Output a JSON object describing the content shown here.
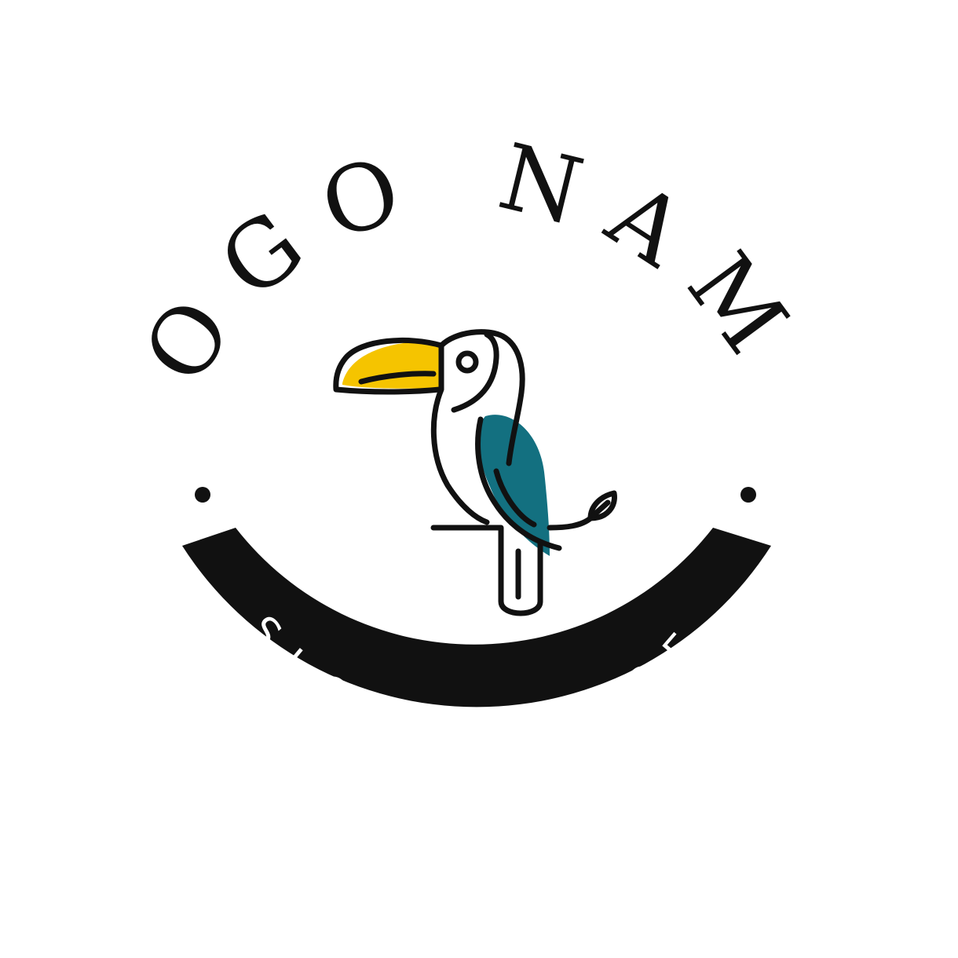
{
  "logo": {
    "title": "LOGO NAME",
    "slogan": "SLOGAN HERE"
  },
  "colors": {
    "background": "#ffffff",
    "ink": "#111111",
    "beak": "#f5c400",
    "wing": "#137080",
    "ribbon_text": "#ffffff"
  },
  "emblem": {
    "icon": "toucan-icon",
    "perch": "branch-with-leaf",
    "ornaments": [
      "dot",
      "dot"
    ]
  }
}
